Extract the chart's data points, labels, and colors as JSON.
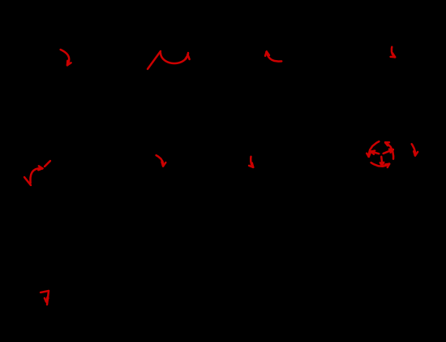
{
  "background_color": "#000000",
  "arrow_color": "#cc0000",
  "fig_width": 5.5,
  "fig_height": 4.21,
  "dpi": 100
}
